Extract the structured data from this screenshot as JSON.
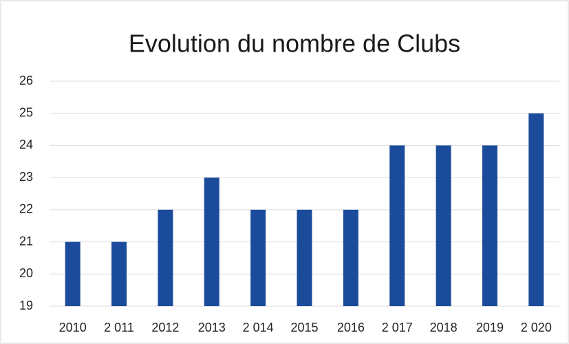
{
  "chart_data": {
    "type": "bar",
    "title": "Evolution du nombre de Clubs",
    "categories": [
      "2010",
      "2 011",
      "2012",
      "2013",
      "2 014",
      "2015",
      "2016",
      "2 017",
      "2018",
      "2019",
      "2 020"
    ],
    "values": [
      21,
      21,
      22,
      23,
      22,
      22,
      22,
      24,
      24,
      24,
      25
    ],
    "color": "#1b4b9b",
    "ylim": [
      19,
      26
    ],
    "yticks": [
      19,
      20,
      21,
      22,
      23,
      24,
      25,
      26
    ],
    "grid": true
  }
}
